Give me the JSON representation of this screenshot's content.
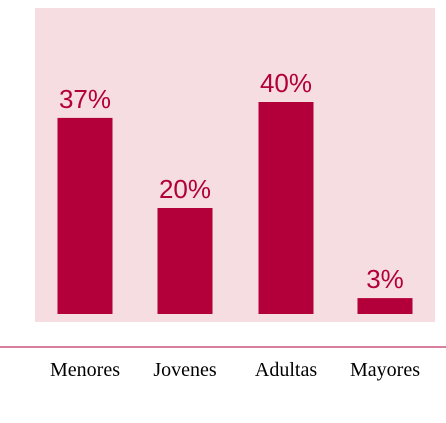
{
  "chart_data": {
    "type": "bar",
    "categories": [
      "Menores",
      "Jovenes",
      "Adultas",
      "Mayores"
    ],
    "values": [
      37,
      20,
      40,
      3
    ],
    "value_labels": [
      "37%",
      "20%",
      "40%",
      "3%"
    ],
    "title": "",
    "xlabel": "",
    "ylabel": "",
    "ylim": [
      0,
      40
    ],
    "grid": false,
    "legend": "none"
  },
  "colors": {
    "plot_background": "#f5dde1",
    "bar": "#b3003a",
    "value_text": "#b3003a",
    "category_text": "#000000",
    "baseline": "#b3003a"
  }
}
